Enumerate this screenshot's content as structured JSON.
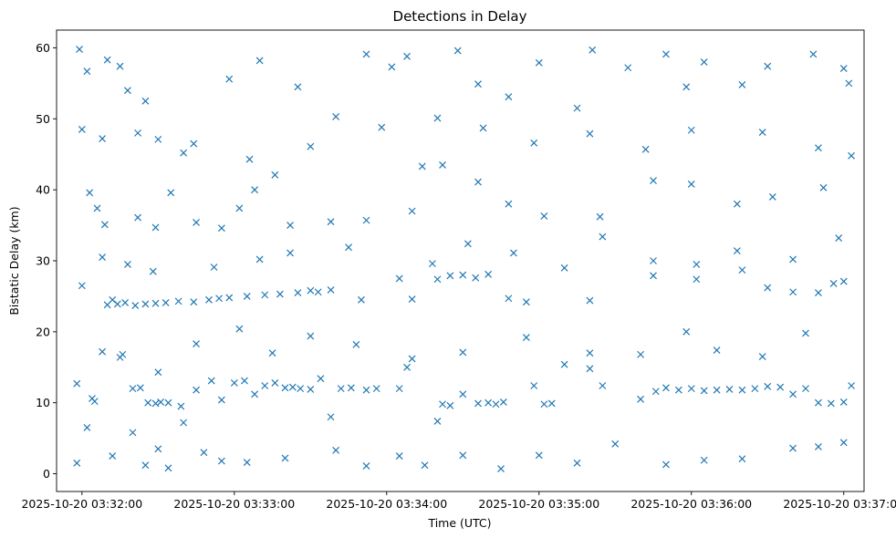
{
  "chart_data": {
    "type": "scatter",
    "title": "Detections in Delay",
    "xlabel": "Time (UTC)",
    "ylabel": "Bistatic Delay (km)",
    "marker": "x",
    "color": "#1f77b4",
    "grid": false,
    "x_unit": "time (UTC)",
    "xlim": [
      "2025-10-20 03:31:50",
      "2025-10-20 03:37:08"
    ],
    "ylim": [
      -2.5,
      62.5
    ],
    "x_ticks": [
      "2025-10-20 03:32:00",
      "2025-10-20 03:33:00",
      "2025-10-20 03:34:00",
      "2025-10-20 03:35:00",
      "2025-10-20 03:36:00",
      "2025-10-20 03:37:00"
    ],
    "y_ticks": [
      "0",
      "10",
      "20",
      "30",
      "40",
      "50",
      "60"
    ],
    "series": [
      {
        "points": [
          [
            "2025-10-20 03:31:58",
            1.5
          ],
          [
            "2025-10-20 03:32:02",
            6.5
          ],
          [
            "2025-10-20 03:32:05",
            10.2
          ],
          [
            "2025-10-20 03:32:12",
            2.5
          ],
          [
            "2025-10-20 03:32:20",
            5.8
          ],
          [
            "2025-10-20 03:32:25",
            1.2
          ],
          [
            "2025-10-20 03:32:30",
            3.5
          ],
          [
            "2025-10-20 03:32:34",
            0.8
          ],
          [
            "2025-10-20 03:32:40",
            7.2
          ],
          [
            "2025-10-20 03:32:48",
            3.0
          ],
          [
            "2025-10-20 03:32:55",
            1.8
          ],
          [
            "2025-10-20 03:33:05",
            1.6
          ],
          [
            "2025-10-20 03:33:20",
            2.2
          ],
          [
            "2025-10-20 03:33:40",
            3.3
          ],
          [
            "2025-10-20 03:33:52",
            1.1
          ],
          [
            "2025-10-20 03:34:05",
            2.5
          ],
          [
            "2025-10-20 03:34:15",
            1.2
          ],
          [
            "2025-10-20 03:34:20",
            7.4
          ],
          [
            "2025-10-20 03:34:30",
            2.6
          ],
          [
            "2025-10-20 03:34:45",
            0.7
          ],
          [
            "2025-10-20 03:35:00",
            2.6
          ],
          [
            "2025-10-20 03:35:15",
            1.5
          ],
          [
            "2025-10-20 03:35:30",
            4.2
          ],
          [
            "2025-10-20 03:35:50",
            1.3
          ],
          [
            "2025-10-20 03:36:05",
            1.9
          ],
          [
            "2025-10-20 03:36:20",
            2.1
          ],
          [
            "2025-10-20 03:36:40",
            3.6
          ],
          [
            "2025-10-20 03:36:50",
            3.8
          ],
          [
            "2025-10-20 03:37:00",
            4.4
          ],
          [
            "2025-10-20 03:31:58",
            12.7
          ],
          [
            "2025-10-20 03:32:04",
            10.6
          ],
          [
            "2025-10-20 03:32:15",
            16.4
          ],
          [
            "2025-10-20 03:32:20",
            12.0
          ],
          [
            "2025-10-20 03:32:23",
            12.1
          ],
          [
            "2025-10-20 03:32:26",
            10.0
          ],
          [
            "2025-10-20 03:32:29",
            9.9
          ],
          [
            "2025-10-20 03:32:31",
            10.1
          ],
          [
            "2025-10-20 03:32:34",
            10.0
          ],
          [
            "2025-10-20 03:32:39",
            9.5
          ],
          [
            "2025-10-20 03:32:45",
            11.8
          ],
          [
            "2025-10-20 03:32:51",
            13.1
          ],
          [
            "2025-10-20 03:32:55",
            10.4
          ],
          [
            "2025-10-20 03:33:00",
            12.8
          ],
          [
            "2025-10-20 03:33:04",
            13.1
          ],
          [
            "2025-10-20 03:33:08",
            11.2
          ],
          [
            "2025-10-20 03:33:12",
            12.4
          ],
          [
            "2025-10-20 03:33:16",
            12.8
          ],
          [
            "2025-10-20 03:33:20",
            12.1
          ],
          [
            "2025-10-20 03:33:23",
            12.2
          ],
          [
            "2025-10-20 03:33:26",
            12.0
          ],
          [
            "2025-10-20 03:33:30",
            11.9
          ],
          [
            "2025-10-20 03:33:34",
            13.4
          ],
          [
            "2025-10-20 03:33:38",
            8.0
          ],
          [
            "2025-10-20 03:33:42",
            12.0
          ],
          [
            "2025-10-20 03:33:46",
            12.1
          ],
          [
            "2025-10-20 03:33:52",
            11.8
          ],
          [
            "2025-10-20 03:33:56",
            12.0
          ],
          [
            "2025-10-20 03:34:05",
            12.0
          ],
          [
            "2025-10-20 03:34:10",
            16.2
          ],
          [
            "2025-10-20 03:34:22",
            9.8
          ],
          [
            "2025-10-20 03:34:25",
            9.6
          ],
          [
            "2025-10-20 03:34:30",
            11.2
          ],
          [
            "2025-10-20 03:34:36",
            9.9
          ],
          [
            "2025-10-20 03:34:40",
            10.0
          ],
          [
            "2025-10-20 03:34:43",
            9.8
          ],
          [
            "2025-10-20 03:34:46",
            10.1
          ],
          [
            "2025-10-20 03:34:58",
            12.4
          ],
          [
            "2025-10-20 03:35:02",
            9.8
          ],
          [
            "2025-10-20 03:35:05",
            9.9
          ],
          [
            "2025-10-20 03:35:10",
            15.4
          ],
          [
            "2025-10-20 03:35:20",
            14.8
          ],
          [
            "2025-10-20 03:35:25",
            12.4
          ],
          [
            "2025-10-20 03:35:40",
            10.5
          ],
          [
            "2025-10-20 03:35:46",
            11.6
          ],
          [
            "2025-10-20 03:35:50",
            12.1
          ],
          [
            "2025-10-20 03:35:55",
            11.8
          ],
          [
            "2025-10-20 03:36:00",
            12.0
          ],
          [
            "2025-10-20 03:36:05",
            11.7
          ],
          [
            "2025-10-20 03:36:10",
            11.8
          ],
          [
            "2025-10-20 03:36:15",
            11.9
          ],
          [
            "2025-10-20 03:36:20",
            11.8
          ],
          [
            "2025-10-20 03:36:25",
            12.0
          ],
          [
            "2025-10-20 03:36:30",
            12.3
          ],
          [
            "2025-10-20 03:36:35",
            12.2
          ],
          [
            "2025-10-20 03:36:40",
            11.2
          ],
          [
            "2025-10-20 03:36:45",
            12.0
          ],
          [
            "2025-10-20 03:36:50",
            10.0
          ],
          [
            "2025-10-20 03:36:55",
            9.9
          ],
          [
            "2025-10-20 03:37:00",
            10.1
          ],
          [
            "2025-10-20 03:37:03",
            12.4
          ],
          [
            "2025-10-20 03:32:08",
            17.2
          ],
          [
            "2025-10-20 03:32:16",
            16.8
          ],
          [
            "2025-10-20 03:32:30",
            14.3
          ],
          [
            "2025-10-20 03:32:45",
            18.3
          ],
          [
            "2025-10-20 03:33:02",
            20.4
          ],
          [
            "2025-10-20 03:33:15",
            17.0
          ],
          [
            "2025-10-20 03:33:30",
            19.4
          ],
          [
            "2025-10-20 03:33:48",
            18.2
          ],
          [
            "2025-10-20 03:34:08",
            15.0
          ],
          [
            "2025-10-20 03:34:30",
            17.1
          ],
          [
            "2025-10-20 03:34:55",
            19.2
          ],
          [
            "2025-10-20 03:35:20",
            17.0
          ],
          [
            "2025-10-20 03:35:40",
            16.8
          ],
          [
            "2025-10-20 03:35:58",
            20.0
          ],
          [
            "2025-10-20 03:36:10",
            17.4
          ],
          [
            "2025-10-20 03:36:28",
            16.5
          ],
          [
            "2025-10-20 03:36:45",
            19.8
          ],
          [
            "2025-10-20 03:32:10",
            23.8
          ],
          [
            "2025-10-20 03:32:12",
            24.5
          ],
          [
            "2025-10-20 03:32:14",
            23.9
          ],
          [
            "2025-10-20 03:32:17",
            24.1
          ],
          [
            "2025-10-20 03:32:21",
            23.7
          ],
          [
            "2025-10-20 03:32:25",
            23.9
          ],
          [
            "2025-10-20 03:32:29",
            24.0
          ],
          [
            "2025-10-20 03:32:33",
            24.1
          ],
          [
            "2025-10-20 03:32:38",
            24.3
          ],
          [
            "2025-10-20 03:32:44",
            24.2
          ],
          [
            "2025-10-20 03:32:50",
            24.5
          ],
          [
            "2025-10-20 03:32:54",
            24.7
          ],
          [
            "2025-10-20 03:32:58",
            24.8
          ],
          [
            "2025-10-20 03:33:05",
            25.0
          ],
          [
            "2025-10-20 03:33:12",
            25.2
          ],
          [
            "2025-10-20 03:33:18",
            25.3
          ],
          [
            "2025-10-20 03:33:25",
            25.5
          ],
          [
            "2025-10-20 03:33:30",
            25.8
          ],
          [
            "2025-10-20 03:33:33",
            25.6
          ],
          [
            "2025-10-20 03:33:38",
            25.9
          ],
          [
            "2025-10-20 03:33:50",
            24.5
          ],
          [
            "2025-10-20 03:34:05",
            27.5
          ],
          [
            "2025-10-20 03:34:10",
            24.6
          ],
          [
            "2025-10-20 03:34:20",
            27.4
          ],
          [
            "2025-10-20 03:34:25",
            27.9
          ],
          [
            "2025-10-20 03:34:30",
            28.0
          ],
          [
            "2025-10-20 03:34:35",
            27.6
          ],
          [
            "2025-10-20 03:34:40",
            28.1
          ],
          [
            "2025-10-20 03:34:48",
            24.7
          ],
          [
            "2025-10-20 03:34:55",
            24.2
          ],
          [
            "2025-10-20 03:35:20",
            24.4
          ],
          [
            "2025-10-20 03:35:45",
            27.9
          ],
          [
            "2025-10-20 03:36:02",
            27.4
          ],
          [
            "2025-10-20 03:36:20",
            28.7
          ],
          [
            "2025-10-20 03:36:30",
            26.2
          ],
          [
            "2025-10-20 03:36:40",
            25.6
          ],
          [
            "2025-10-20 03:36:50",
            25.5
          ],
          [
            "2025-10-20 03:36:56",
            26.8
          ],
          [
            "2025-10-20 03:37:00",
            27.1
          ],
          [
            "2025-10-20 03:32:00",
            26.5
          ],
          [
            "2025-10-20 03:32:08",
            30.5
          ],
          [
            "2025-10-20 03:32:18",
            29.5
          ],
          [
            "2025-10-20 03:32:28",
            28.5
          ],
          [
            "2025-10-20 03:32:52",
            29.1
          ],
          [
            "2025-10-20 03:33:10",
            30.2
          ],
          [
            "2025-10-20 03:33:22",
            31.1
          ],
          [
            "2025-10-20 03:33:45",
            31.9
          ],
          [
            "2025-10-20 03:34:18",
            29.6
          ],
          [
            "2025-10-20 03:34:32",
            32.4
          ],
          [
            "2025-10-20 03:34:50",
            31.1
          ],
          [
            "2025-10-20 03:35:10",
            29.0
          ],
          [
            "2025-10-20 03:35:25",
            33.4
          ],
          [
            "2025-10-20 03:35:45",
            30.0
          ],
          [
            "2025-10-20 03:36:02",
            29.5
          ],
          [
            "2025-10-20 03:36:18",
            31.4
          ],
          [
            "2025-10-20 03:36:40",
            30.2
          ],
          [
            "2025-10-20 03:36:58",
            33.2
          ],
          [
            "2025-10-20 03:32:03",
            39.6
          ],
          [
            "2025-10-20 03:32:06",
            37.4
          ],
          [
            "2025-10-20 03:32:09",
            35.1
          ],
          [
            "2025-10-20 03:32:22",
            36.1
          ],
          [
            "2025-10-20 03:32:29",
            34.7
          ],
          [
            "2025-10-20 03:32:35",
            39.6
          ],
          [
            "2025-10-20 03:32:45",
            35.4
          ],
          [
            "2025-10-20 03:32:55",
            34.6
          ],
          [
            "2025-10-20 03:33:02",
            37.4
          ],
          [
            "2025-10-20 03:33:08",
            40.0
          ],
          [
            "2025-10-20 03:33:16",
            42.1
          ],
          [
            "2025-10-20 03:33:22",
            35.0
          ],
          [
            "2025-10-20 03:33:38",
            35.5
          ],
          [
            "2025-10-20 03:33:52",
            35.7
          ],
          [
            "2025-10-20 03:34:10",
            37.0
          ],
          [
            "2025-10-20 03:34:22",
            43.5
          ],
          [
            "2025-10-20 03:34:36",
            41.1
          ],
          [
            "2025-10-20 03:34:48",
            38.0
          ],
          [
            "2025-10-20 03:35:02",
            36.3
          ],
          [
            "2025-10-20 03:35:24",
            36.2
          ],
          [
            "2025-10-20 03:35:45",
            41.3
          ],
          [
            "2025-10-20 03:36:00",
            40.8
          ],
          [
            "2025-10-20 03:36:18",
            38.0
          ],
          [
            "2025-10-20 03:36:32",
            39.0
          ],
          [
            "2025-10-20 03:36:52",
            40.3
          ],
          [
            "2025-10-20 03:31:59",
            59.8
          ],
          [
            "2025-10-20 03:32:02",
            56.7
          ],
          [
            "2025-10-20 03:32:08",
            47.2
          ],
          [
            "2025-10-20 03:32:10",
            58.3
          ],
          [
            "2025-10-20 03:32:15",
            57.4
          ],
          [
            "2025-10-20 03:32:18",
            54.0
          ],
          [
            "2025-10-20 03:32:25",
            52.5
          ],
          [
            "2025-10-20 03:32:30",
            47.1
          ],
          [
            "2025-10-20 03:32:44",
            46.5
          ],
          [
            "2025-10-20 03:32:58",
            55.6
          ],
          [
            "2025-10-20 03:33:10",
            58.2
          ],
          [
            "2025-10-20 03:33:25",
            54.5
          ],
          [
            "2025-10-20 03:33:40",
            50.3
          ],
          [
            "2025-10-20 03:33:52",
            59.1
          ],
          [
            "2025-10-20 03:34:02",
            57.3
          ],
          [
            "2025-10-20 03:34:08",
            58.8
          ],
          [
            "2025-10-20 03:34:20",
            50.1
          ],
          [
            "2025-10-20 03:34:28",
            59.6
          ],
          [
            "2025-10-20 03:34:36",
            54.9
          ],
          [
            "2025-10-20 03:34:48",
            53.1
          ],
          [
            "2025-10-20 03:35:00",
            57.9
          ],
          [
            "2025-10-20 03:35:15",
            51.5
          ],
          [
            "2025-10-20 03:35:21",
            59.7
          ],
          [
            "2025-10-20 03:35:35",
            57.2
          ],
          [
            "2025-10-20 03:35:50",
            59.1
          ],
          [
            "2025-10-20 03:35:58",
            54.5
          ],
          [
            "2025-10-20 03:36:05",
            58.0
          ],
          [
            "2025-10-20 03:36:20",
            54.8
          ],
          [
            "2025-10-20 03:36:30",
            57.4
          ],
          [
            "2025-10-20 03:36:48",
            59.1
          ],
          [
            "2025-10-20 03:37:00",
            57.1
          ],
          [
            "2025-10-20 03:37:02",
            55.0
          ],
          [
            "2025-10-20 03:32:00",
            48.5
          ],
          [
            "2025-10-20 03:32:22",
            48.0
          ],
          [
            "2025-10-20 03:32:40",
            45.2
          ],
          [
            "2025-10-20 03:33:06",
            44.3
          ],
          [
            "2025-10-20 03:33:30",
            46.1
          ],
          [
            "2025-10-20 03:33:58",
            48.8
          ],
          [
            "2025-10-20 03:34:14",
            43.3
          ],
          [
            "2025-10-20 03:34:38",
            48.7
          ],
          [
            "2025-10-20 03:34:58",
            46.6
          ],
          [
            "2025-10-20 03:35:20",
            47.9
          ],
          [
            "2025-10-20 03:35:42",
            45.7
          ],
          [
            "2025-10-20 03:36:00",
            48.4
          ],
          [
            "2025-10-20 03:36:28",
            48.1
          ],
          [
            "2025-10-20 03:36:50",
            45.9
          ],
          [
            "2025-10-20 03:37:03",
            44.8
          ]
        ]
      }
    ]
  }
}
